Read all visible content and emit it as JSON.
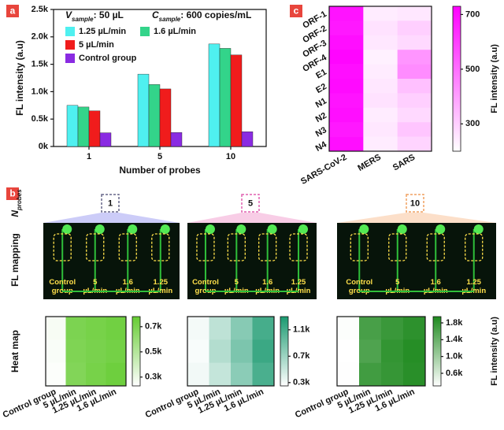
{
  "panels": [
    "a",
    "b",
    "c"
  ],
  "probe_label": {
    "symbol": "N",
    "subscript": "probes"
  },
  "probe_counts": [
    "1",
    "5",
    "10"
  ],
  "row_labels": [
    "FL mapping",
    "Heat map"
  ],
  "photo_labels": [
    "Control group",
    "5 µL/min",
    "1.6 µL/min",
    "1.25 µL/min"
  ],
  "chart_data": [
    {
      "type": "bar",
      "x_label": "Number of probes",
      "y_label": "FL intensity (a.u)",
      "annotations": [
        {
          "symbol": "V",
          "subscript": "sample",
          "text": ": 50 µL"
        },
        {
          "symbol": "C",
          "subscript": "sample",
          "text": ": 600 copies/mL"
        }
      ],
      "categories": [
        "1",
        "5",
        "10"
      ],
      "series": [
        {
          "name": "1.25 µL/min",
          "color": "#4ff0f0",
          "values": [
            750,
            1320,
            1870
          ]
        },
        {
          "name": "1.6 µL/min",
          "color": "#33d48a",
          "values": [
            720,
            1130,
            1790
          ]
        },
        {
          "name": "5 µL/min",
          "color": "#f01c1c",
          "values": [
            650,
            1050,
            1670
          ]
        },
        {
          "name": "Control group",
          "color": "#8a2be2",
          "values": [
            250,
            255,
            270
          ]
        }
      ],
      "ylim": [
        0,
        2500
      ],
      "yticks": [
        {
          "value": 0,
          "label": "0k"
        },
        {
          "value": 500,
          "label": "0.5k"
        },
        {
          "value": 1000,
          "label": "1.0k"
        },
        {
          "value": 1500,
          "label": "1.5k"
        },
        {
          "value": 2000,
          "label": "2.0k"
        },
        {
          "value": 2500,
          "label": "2.5k"
        }
      ],
      "legend": "upper left"
    },
    {
      "type": "heatmap",
      "colorbar_label": "FL intensity (a.u)",
      "x_categories": [
        "SARS-CoV-2",
        "MERS",
        "SARS"
      ],
      "y_categories": [
        "ORF-1",
        "ORF-2",
        "ORF-3",
        "ORF-4",
        "E1",
        "E2",
        "N1",
        "N2",
        "N3",
        "N4"
      ],
      "values": [
        [
          690,
          240,
          250
        ],
        [
          680,
          260,
          300
        ],
        [
          700,
          250,
          280
        ],
        [
          720,
          230,
          420
        ],
        [
          700,
          240,
          440
        ],
        [
          710,
          250,
          330
        ],
        [
          690,
          260,
          300
        ],
        [
          700,
          240,
          280
        ],
        [
          680,
          250,
          320
        ],
        [
          700,
          240,
          290
        ]
      ],
      "zlim": [
        200,
        730
      ],
      "zticks": [
        300,
        500,
        700
      ],
      "color_low": "#ffffff",
      "color_high": "#ff00ff"
    },
    {
      "type": "heatmap",
      "x_categories": [
        "Control group",
        "5 µL/min",
        "1.25 µL/min",
        "1.6 µL/min"
      ],
      "values": [
        [
          260,
          700,
          720,
          740
        ],
        [
          250,
          690,
          710,
          730
        ],
        [
          240,
          680,
          720,
          750
        ]
      ],
      "zlim": [
        230,
        780
      ],
      "zticks": [
        {
          "value": 300,
          "label": "0.3k"
        },
        {
          "value": 500,
          "label": "0.5k"
        },
        {
          "value": 700,
          "label": "0.7k"
        }
      ],
      "color_low": "#ffffff",
      "color_high": "#66cc33"
    },
    {
      "type": "heatmap",
      "x_categories": [
        "Control group",
        "5 µL/min",
        "1.25 µL/min",
        "1.6 µL/min"
      ],
      "values": [
        [
          300,
          550,
          800,
          1100
        ],
        [
          280,
          600,
          850,
          1150
        ],
        [
          310,
          520,
          780,
          1080
        ]
      ],
      "zlim": [
        250,
        1300
      ],
      "zticks": [
        {
          "value": 300,
          "label": "0.3k"
        },
        {
          "value": 700,
          "label": "0.7k"
        },
        {
          "value": 1100,
          "label": "1.1k"
        }
      ],
      "color_low": "#ffffff",
      "color_high": "#1a9a70"
    },
    {
      "type": "heatmap",
      "colorbar_label": "FL intensity (a.u)",
      "x_categories": [
        "Control group",
        "5 µL/min",
        "1.25 µL/min",
        "1.6 µL/min"
      ],
      "values": [
        [
          320,
          1650,
          1750,
          1850
        ],
        [
          300,
          1600,
          1800,
          1900
        ],
        [
          310,
          1700,
          1780,
          1880
        ]
      ],
      "zlim": [
        300,
        1950
      ],
      "zticks": [
        {
          "value": 600,
          "label": "0.6k"
        },
        {
          "value": 1000,
          "label": "1.0k"
        },
        {
          "value": 1400,
          "label": "1.4k"
        },
        {
          "value": 1800,
          "label": "1.8k"
        }
      ],
      "color_low": "#ffffff",
      "color_high": "#1f8a1f"
    }
  ]
}
